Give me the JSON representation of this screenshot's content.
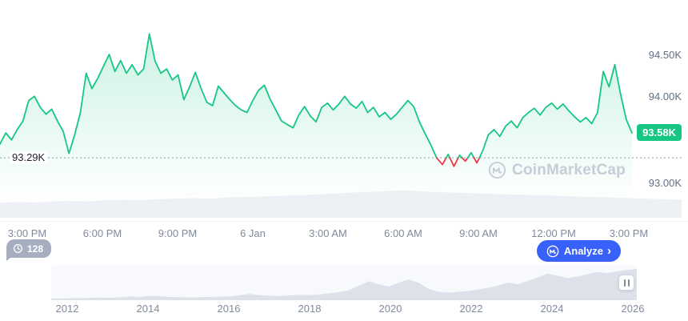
{
  "theme": {
    "green": "#16c784",
    "red": "#ea3943",
    "blue": "#3861fb",
    "gray_text": "#808a9d",
    "axis_text": "#616e85",
    "watermark_color": "#c6cdd8",
    "volume_fill": "#edf0f5",
    "brush_fill": "#dde2ea"
  },
  "watermark": {
    "label": "CoinMarketCap"
  },
  "controls": {
    "annotation_count": "128",
    "analyze_label": "Analyze"
  },
  "chart_data": {
    "type": "line",
    "title": "",
    "y_axis_ticks": [
      "94.50K",
      "94.00K",
      "93.00K"
    ],
    "current_price_label": "93.58K",
    "current_price_value": 93.58,
    "open_price_label": "93.29K",
    "open_price_value": 93.29,
    "ylim": [
      92.85,
      94.95
    ],
    "grid": false,
    "legend": false,
    "x_axis_labels": [
      "3:00 PM",
      "6:00 PM",
      "9:00 PM",
      "6 Jan",
      "3:00 AM",
      "6:00 AM",
      "9:00 AM",
      "12:00 PM",
      "3:00 PM"
    ],
    "series": [
      {
        "name": "price",
        "values": [
          93.45,
          93.58,
          93.5,
          93.62,
          93.72,
          93.96,
          94.01,
          93.88,
          93.8,
          93.86,
          93.72,
          93.6,
          93.34,
          93.56,
          93.82,
          94.28,
          94.1,
          94.22,
          94.36,
          94.5,
          94.3,
          94.43,
          94.28,
          94.38,
          94.26,
          94.33,
          94.74,
          94.42,
          94.28,
          94.33,
          94.2,
          94.26,
          93.97,
          94.12,
          94.29,
          94.1,
          93.94,
          93.9,
          94.13,
          94.05,
          93.97,
          93.9,
          93.85,
          93.82,
          93.96,
          94.08,
          94.14,
          93.98,
          93.85,
          93.72,
          93.68,
          93.64,
          93.79,
          93.89,
          93.78,
          93.71,
          93.88,
          93.93,
          93.85,
          93.92,
          94.01,
          93.92,
          93.87,
          93.95,
          93.82,
          93.88,
          93.77,
          93.82,
          93.74,
          93.8,
          93.88,
          93.96,
          93.89,
          93.71,
          93.57,
          93.44,
          93.29,
          93.21,
          93.33,
          93.19,
          93.32,
          93.25,
          93.35,
          93.23,
          93.37,
          93.56,
          93.62,
          93.54,
          93.66,
          93.72,
          93.64,
          93.76,
          93.82,
          93.87,
          93.79,
          93.88,
          93.93,
          93.86,
          93.92,
          93.84,
          93.77,
          93.71,
          93.76,
          93.69,
          93.82,
          94.3,
          94.12,
          94.38,
          94.04,
          93.74,
          93.58
        ]
      }
    ],
    "volume": {
      "values": [
        0.55,
        0.58,
        0.56,
        0.6,
        0.62,
        0.6,
        0.64,
        0.66,
        0.64,
        0.68,
        0.7,
        0.72,
        0.7,
        0.74,
        0.76,
        0.78,
        0.8,
        0.82,
        0.85,
        0.88,
        0.92,
        0.95,
        0.97,
        1.0,
        0.97,
        0.94,
        0.92,
        0.9,
        0.88,
        0.86,
        0.84,
        0.82,
        0.8,
        0.78,
        0.76,
        0.74,
        0.72,
        0.7,
        0.68,
        0.66
      ]
    },
    "mini_chart": {
      "x_labels": [
        "2012",
        "2014",
        "2016",
        "2018",
        "2020",
        "2022",
        "2024",
        "2026"
      ],
      "values": [
        0.03,
        0.03,
        0.04,
        0.04,
        0.05,
        0.06,
        0.05,
        0.07,
        0.1,
        0.08,
        0.12,
        0.1,
        0.08,
        0.07,
        0.06,
        0.07,
        0.08,
        0.09,
        0.1,
        0.14,
        0.18,
        0.14,
        0.12,
        0.11,
        0.13,
        0.15,
        0.14,
        0.16,
        0.2,
        0.24,
        0.3,
        0.45,
        0.6,
        0.5,
        0.42,
        0.55,
        0.65,
        0.55,
        0.35,
        0.25,
        0.22,
        0.25,
        0.28,
        0.32,
        0.38,
        0.45,
        0.55,
        0.5,
        0.6,
        0.72,
        0.85,
        0.78,
        0.7,
        0.75,
        0.82,
        0.9,
        0.86,
        0.92,
        0.97,
        1.0
      ]
    }
  }
}
